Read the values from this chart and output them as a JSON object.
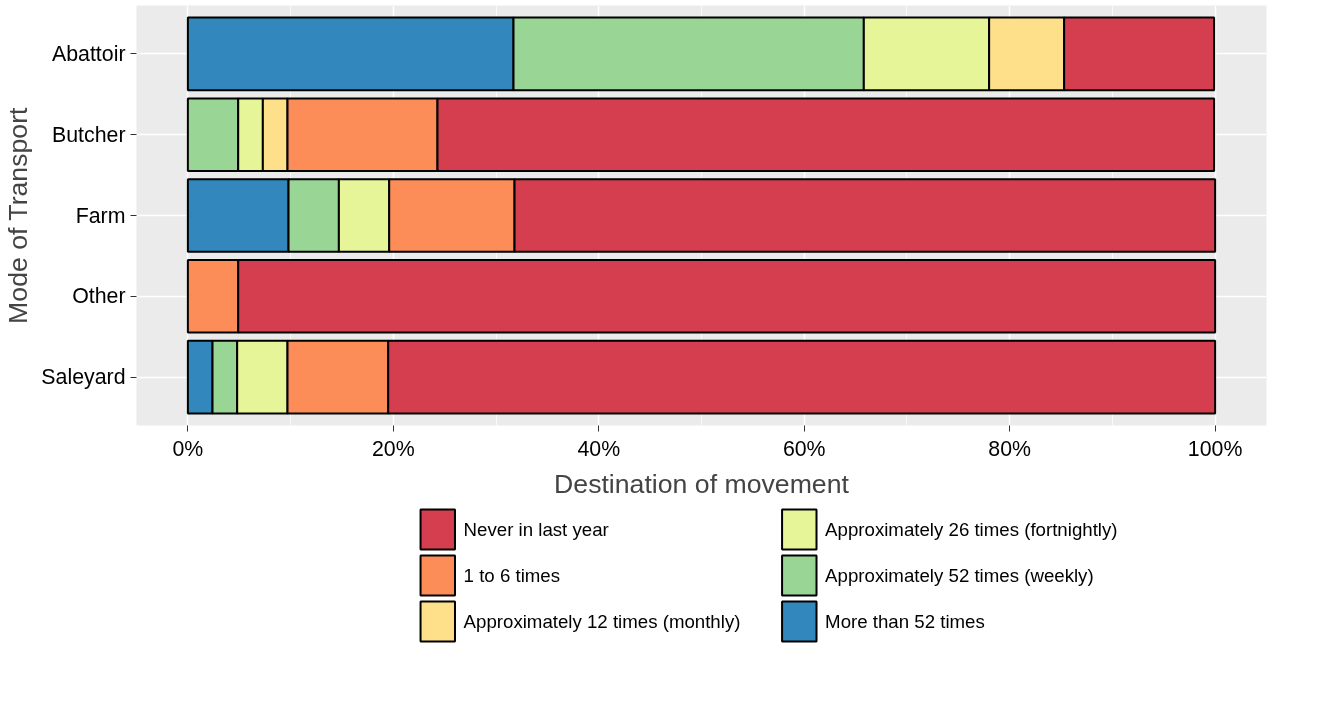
{
  "chart_data": {
    "type": "bar",
    "orientation": "horizontal",
    "stacked": true,
    "xlabel": "Destination of movement",
    "ylabel": "Mode of Transport",
    "categories": [
      "Abattoir",
      "Butcher",
      "Farm",
      "Other",
      "Saleyard"
    ],
    "series": [
      {
        "name": "More than 52 times",
        "color": "#3288bd",
        "values": [
          31.7,
          0,
          9.8,
          0,
          2.4
        ]
      },
      {
        "name": "Approximately 52 times (weekly)",
        "color": "#99d594",
        "values": [
          34.1,
          4.9,
          4.9,
          0,
          2.4
        ]
      },
      {
        "name": "Approximately 26 times (fortnightly)",
        "color": "#e6f598",
        "values": [
          12.2,
          2.4,
          4.9,
          0,
          4.9
        ]
      },
      {
        "name": "Approximately 12 times (monthly)",
        "color": "#fee08b",
        "values": [
          7.3,
          2.4,
          0,
          0,
          0
        ]
      },
      {
        "name": "1 to 6 times",
        "color": "#fc8d59",
        "values": [
          0,
          14.6,
          12.2,
          4.9,
          9.8
        ]
      },
      {
        "name": "Never in last year",
        "color": "#d53e4f",
        "values": [
          14.6,
          75.6,
          68.2,
          95.1,
          80.5
        ]
      }
    ],
    "xlim": [
      -5,
      105
    ],
    "xticks": [
      {
        "value": 0,
        "label": "0%"
      },
      {
        "value": 20,
        "label": "20%"
      },
      {
        "value": 40,
        "label": "40%"
      },
      {
        "value": 60,
        "label": "60%"
      },
      {
        "value": 80,
        "label": "80%"
      },
      {
        "value": 100,
        "label": "100%"
      }
    ],
    "grid": true,
    "legend": "bottom"
  }
}
